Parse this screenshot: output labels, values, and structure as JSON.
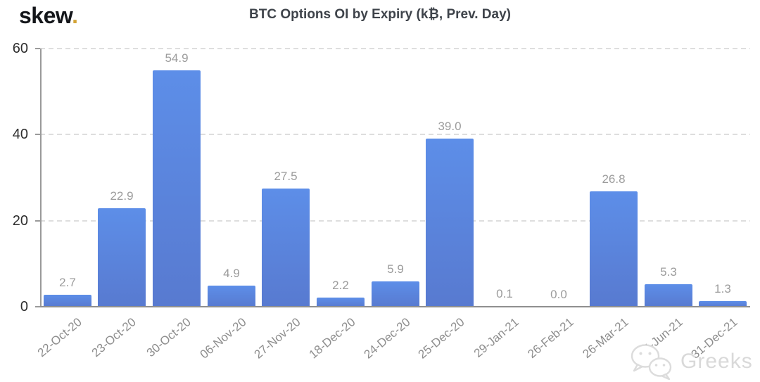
{
  "logo": {
    "text": "skew",
    "dot": "."
  },
  "watermark": {
    "text": "Greeks",
    "icon": "wechat-icon"
  },
  "chart_data": {
    "type": "bar",
    "title": "BTC Options OI by Expiry (k₿, Prev. Day)",
    "categories": [
      "22-Oct-20",
      "23-Oct-20",
      "30-Oct-20",
      "06-Nov-20",
      "27-Nov-20",
      "18-Dec-20",
      "24-Dec-20",
      "25-Dec-20",
      "29-Jan-21",
      "26-Feb-21",
      "26-Mar-21",
      "25-Jun-21",
      "31-Dec-21"
    ],
    "values": [
      2.7,
      22.9,
      54.9,
      4.9,
      27.5,
      2.2,
      5.9,
      39.0,
      0.1,
      0.0,
      26.8,
      5.3,
      1.3
    ],
    "value_labels": [
      "2.7",
      "22.9",
      "54.9",
      "4.9",
      "27.5",
      "2.2",
      "5.9",
      "39.0",
      "0.1",
      "0.0",
      "26.8",
      "5.3",
      "1.3"
    ],
    "xlabel": "",
    "ylabel": "",
    "ylim": [
      0,
      60
    ],
    "yticks": [
      0,
      20,
      40,
      60
    ],
    "ytick_labels": [
      "0",
      "20",
      "40",
      "60"
    ],
    "grid": "horizontal-dashed",
    "legend": "none",
    "colors": {
      "bar_top": "#5d8ee8",
      "bar_bottom": "#587ad0",
      "value_label": "#9c9c9c",
      "x_label": "#8d8d8d",
      "y_label": "#2e2e2e",
      "gridline": "#dedede",
      "axis": "#9a9a9a",
      "title": "#3e434a",
      "logo_dot": "#d4a437",
      "watermark": "#d9d9d9"
    }
  }
}
